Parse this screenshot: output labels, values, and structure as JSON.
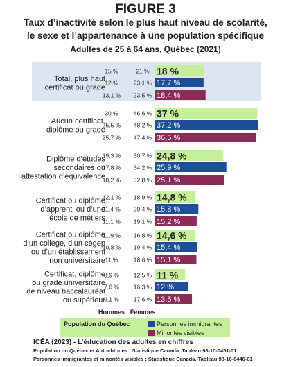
{
  "figure_label": "FIGURE 3",
  "title_line1": "Taux d’inactivité selon le plus haut niveau de scolarité,",
  "title_line2": "le sexe et l’appartenance à une population spécifique",
  "subtitle": "Adultes de 25 à 64 ans, Québec (2021)",
  "colors": {
    "quebec": "#c6ef9a",
    "immigrants": "#1f4e99",
    "minorities": "#8b2c57",
    "highlight_bg": "#dce6f2",
    "legend_bg": "#c6ef9a"
  },
  "chart_data": {
    "type": "bar",
    "orientation": "horizontal",
    "xlim": [
      0,
      37.2
    ],
    "series_names": [
      "Population du Québec",
      "Personnes immigrantes",
      "Minorités visibles"
    ],
    "column_headers": [
      "Hommes",
      "Femmes"
    ],
    "groups": [
      {
        "label": [
          "Total, plus haut",
          "certificat ou grade"
        ],
        "highlight": true,
        "rows": [
          {
            "series": "Population du Québec",
            "hommes": "15 %",
            "femmes": "21 %",
            "value": 18,
            "value_label": "18 %"
          },
          {
            "series": "Personnes immigrantes",
            "hommes": "12 %",
            "femmes": "23,1 %",
            "value": 17.7,
            "value_label": "17,7 %"
          },
          {
            "series": "Minorités visibles",
            "hommes": "13,1 %",
            "femmes": "23,5 %",
            "value": 18.4,
            "value_label": "18,4 %"
          }
        ]
      },
      {
        "label": [
          "Aucun certificat,",
          "diplôme ou grade"
        ],
        "highlight": false,
        "rows": [
          {
            "series": "Population du Québec",
            "hommes": "30 %",
            "femmes": "46,6 %",
            "value": 37,
            "value_label": "37 %"
          },
          {
            "series": "Personnes immigrantes",
            "hommes": "25,5 %",
            "femmes": "48,2 %",
            "value": 37.2,
            "value_label": "37,2 %"
          },
          {
            "series": "Minorités visibles",
            "hommes": "25,7 %",
            "femmes": "47,4 %",
            "value": 36.5,
            "value_label": "36,5 %"
          }
        ]
      },
      {
        "label": [
          "Diplôme d’études",
          "secondaires ou",
          "attestation d’équivalence"
        ],
        "highlight": false,
        "rows": [
          {
            "series": "Population du Québec",
            "hommes": "19,3 %",
            "femmes": "30,7 %",
            "value": 24.8,
            "value_label": "24,8 %"
          },
          {
            "series": "Personnes immigrantes",
            "hommes": "17,8 %",
            "femmes": "34,2 %",
            "value": 25.9,
            "value_label": "25,9 %"
          },
          {
            "series": "Minorités visibles",
            "hommes": "18,2 %",
            "femmes": "32,8 %",
            "value": 25.1,
            "value_label": "25,1 %"
          }
        ]
      },
      {
        "label": [
          "Certificat ou diplôme",
          "d’apprenti ou d’une",
          "école de métiers"
        ],
        "highlight": false,
        "rows": [
          {
            "series": "Population du Québec",
            "hommes": "12,1 %",
            "femmes": "18,9 %",
            "value": 14.8,
            "value_label": "14,8 %"
          },
          {
            "series": "Personnes immigrantes",
            "hommes": "11,4 %",
            "femmes": "20,4 %",
            "value": 15.8,
            "value_label": "15,8 %"
          },
          {
            "series": "Minorités visibles",
            "hommes": "11,1 %",
            "femmes": "19,1 %",
            "value": 15.2,
            "value_label": "15,2 %"
          }
        ]
      },
      {
        "label": [
          "Certificat ou diplôme",
          "d’un collège, d’un cégep",
          "ou d’un établissement",
          "non universitaire"
        ],
        "highlight": false,
        "rows": [
          {
            "series": "Population du Québec",
            "hommes": "11,9 %",
            "femmes": "16,8 %",
            "value": 14.6,
            "value_label": "14,6 %"
          },
          {
            "series": "Personnes immigrantes",
            "hommes": "10,8 %",
            "femmes": "19,4 %",
            "value": 15.4,
            "value_label": "15,4 %"
          },
          {
            "series": "Minorités visibles",
            "hommes": "11 %",
            "femmes": "18,6 %",
            "value": 15.1,
            "value_label": "15,1 %"
          }
        ]
      },
      {
        "label": [
          "Certificat, diplôme",
          "ou grade universitaire",
          "de niveau baccalauréat",
          "ou supérieur"
        ],
        "highlight": false,
        "rows": [
          {
            "series": "Population du Québec",
            "hommes": "8,9 %",
            "femmes": "12,5 %",
            "value": 11,
            "value_label": "11 %"
          },
          {
            "series": "Personnes immigrantes",
            "hommes": "7,6 %",
            "femmes": "16,3 %",
            "value": 12,
            "value_label": "12 %"
          },
          {
            "series": "Minorités visibles",
            "hommes": "9,1 %",
            "femmes": "17,6 %",
            "value": 13.5,
            "value_label": "13,5 %"
          }
        ]
      }
    ]
  },
  "legend": {
    "quebec": "Population du Québec",
    "immigrants": "Personnes immigrantes",
    "minorities": "Minorités visibles"
  },
  "footer": {
    "line1": "ICÉA (2023) - L’éducation des adultes en chiffres",
    "line2": "Population du Québec et Autochtones : Statistique Canada. Tableau 98-10-0451-01",
    "line3": "Personnes immigrantes et minorités visibles : Statistique Canada. Tableau 98-10-0446-01"
  }
}
